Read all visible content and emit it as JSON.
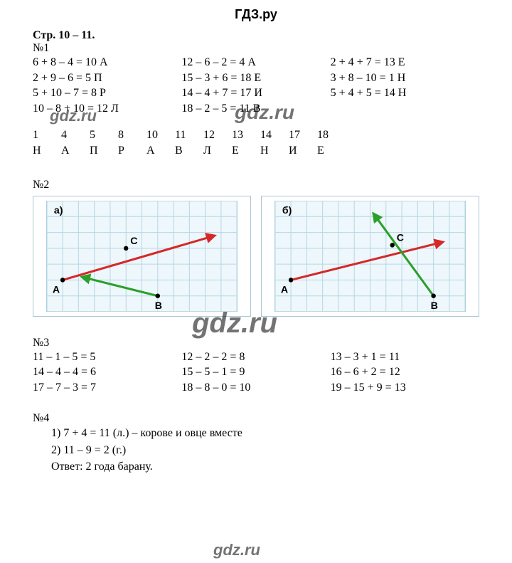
{
  "header": "ГДЗ.ру",
  "page_ref": "Стр. 10 – 11.",
  "watermarks": [
    "gdz.ru",
    "gdz.ru",
    "gdz.ru",
    "gdz.ru"
  ],
  "p1": {
    "title": "№1",
    "col1": [
      "6 + 8 – 4 = 10 А",
      "2 + 9 – 6 = 5 П",
      "5 + 10 – 7 = 8 Р",
      "10 – 8 + 10 = 12 Л"
    ],
    "col2": [
      "12 – 6 – 2 = 4 А",
      "15 – 3 + 6 = 18 Е",
      "14 – 4 + 7 = 17 И",
      "18 – 2 – 5 = 11 В"
    ],
    "col3": [
      "2 + 4 + 7 = 13 Е",
      "3 + 8 – 10 = 1 Н",
      "5 + 4 + 5 = 14 Н"
    ],
    "table_nums": [
      "1",
      "4",
      "5",
      "8",
      "10",
      "11",
      "12",
      "13",
      "14",
      "17",
      "18"
    ],
    "table_letters": [
      "Н",
      "А",
      "П",
      "Р",
      "А",
      "В",
      "Л",
      "Е",
      "Н",
      "И",
      "Е"
    ]
  },
  "p2": {
    "title": "№2",
    "grid": {
      "cols": 12,
      "rows": 7,
      "cell": 22,
      "bg": "#eef7fb",
      "line": "#b9d6e4",
      "border": "#8fbdd1"
    },
    "a": {
      "tag": "а)",
      "labels": {
        "A": "A",
        "B": "B",
        "C": "C"
      },
      "points": {
        "A": [
          1,
          5
        ],
        "B": [
          7,
          6
        ],
        "C": [
          5,
          3
        ]
      },
      "arrows": [
        {
          "from": [
            1,
            5
          ],
          "to": [
            10.6,
            2.2
          ],
          "color": "#d62828",
          "width": 3
        },
        {
          "from": [
            7,
            6
          ],
          "to": [
            2.2,
            4.8
          ],
          "color": "#2aa02a",
          "width": 3
        }
      ]
    },
    "b": {
      "tag": "б)",
      "labels": {
        "A": "A",
        "B": "B",
        "C": "C"
      },
      "points": {
        "A": [
          1,
          5
        ],
        "B": [
          10,
          6
        ],
        "C": [
          7.4,
          2.8
        ]
      },
      "arrows": [
        {
          "from": [
            1,
            5
          ],
          "to": [
            10.6,
            2.6
          ],
          "color": "#d62828",
          "width": 3
        },
        {
          "from": [
            10,
            6
          ],
          "to": [
            6.2,
            0.8
          ],
          "color": "#2aa02a",
          "width": 3
        }
      ]
    }
  },
  "p3": {
    "title": "№3",
    "col1": [
      "11 – 1 – 5 = 5",
      "14 – 4 – 4 = 6",
      "17 – 7 – 3 = 7"
    ],
    "col2": [
      "12 – 2 – 2 = 8",
      "15 – 5 – 1 = 9",
      "18 – 8 – 0 = 10"
    ],
    "col3": [
      "13 – 3 + 1 = 11",
      "16 – 6 + 2 = 12",
      "19 – 15 + 9 = 13"
    ]
  },
  "p4": {
    "title": "№4",
    "lines": [
      "1)  7 + 4 = 11 (л.) – корове и овце вместе",
      "2)  11 – 9 = 2 (г.)",
      "Ответ: 2 года барану."
    ]
  },
  "style": {
    "text_color": "#000000",
    "bg": "#ffffff",
    "font_size_body": 16,
    "font_size_header": 18,
    "watermark_font_size": 26,
    "watermark_color": "rgba(0,0,0,0.55)"
  }
}
